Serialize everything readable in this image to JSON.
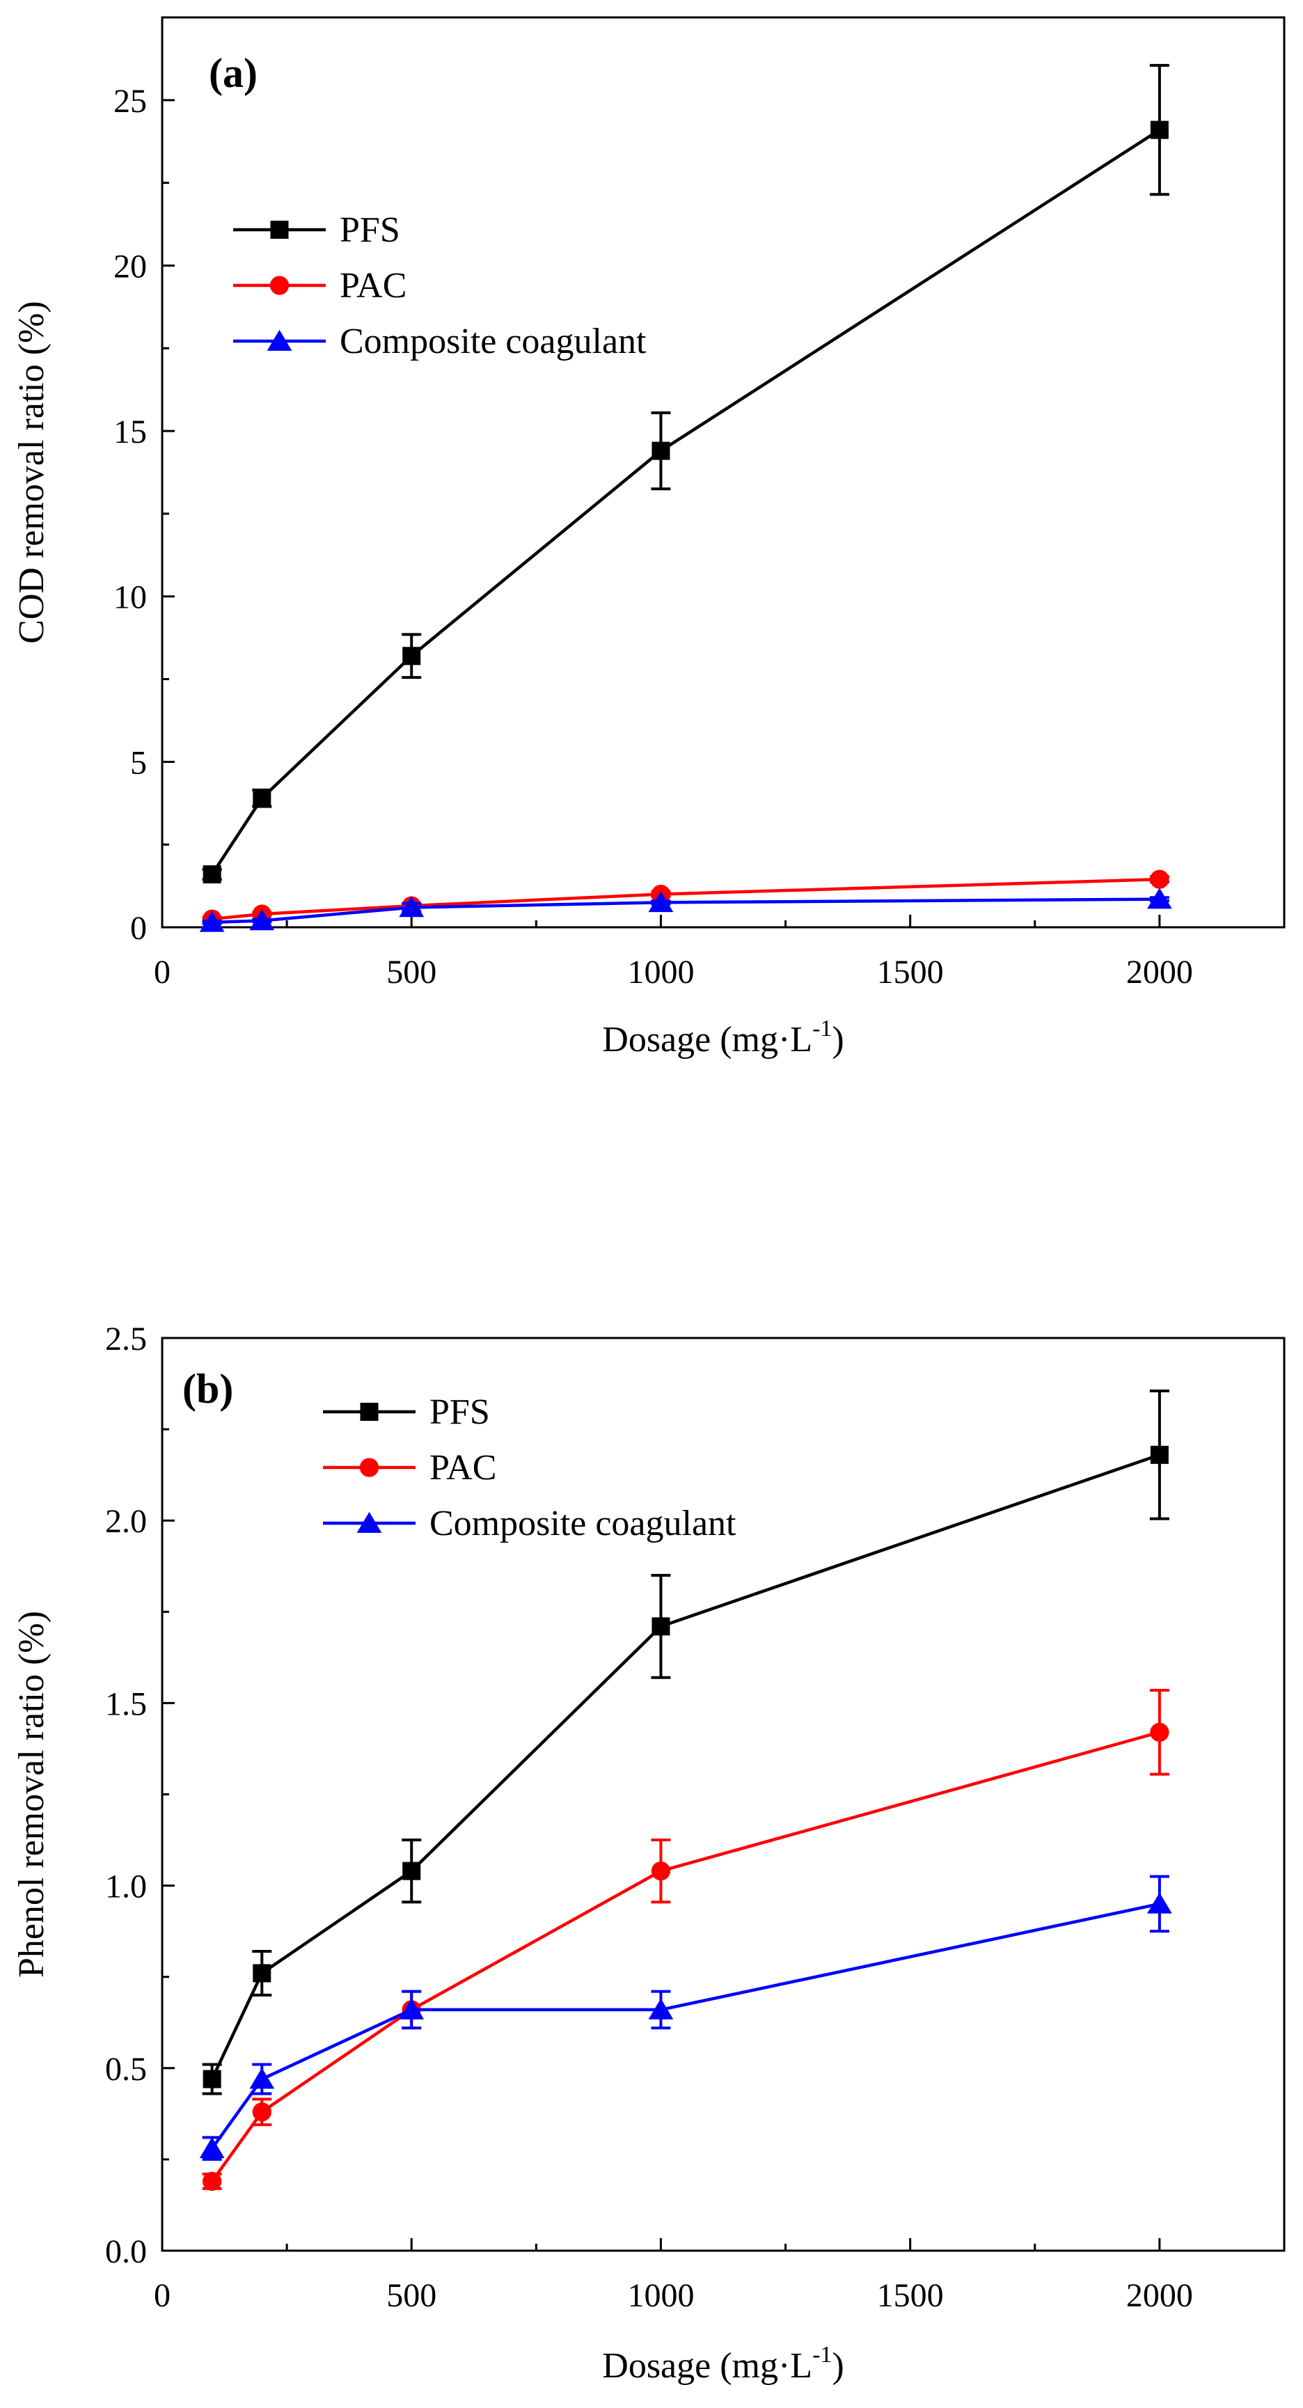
{
  "chart_data": [
    {
      "type": "line",
      "panel_label": "(a)",
      "xlabel": "Dosage (mg·L",
      "xlabel_sup": "-1",
      "xlabel_end": ")",
      "ylabel": "COD removal ratio  (%)",
      "xlim": [
        0,
        2250
      ],
      "ylim": [
        0,
        27.5
      ],
      "x_ticks": [
        0,
        500,
        1000,
        1500,
        2000
      ],
      "y_ticks": [
        0,
        5,
        10,
        15,
        20,
        25
      ],
      "x": [
        100,
        200,
        500,
        1000,
        2000
      ],
      "legend_position": "top-left",
      "series": [
        {
          "name": "PFS",
          "color": "#000000",
          "marker": "square",
          "values": [
            1.6,
            3.9,
            8.2,
            14.4,
            24.1
          ],
          "errors": [
            0.15,
            0.25,
            0.65,
            1.15,
            1.95
          ]
        },
        {
          "name": "PAC",
          "color": "#ff0000",
          "marker": "circle",
          "values": [
            0.25,
            0.4,
            0.65,
            1.0,
            1.45
          ],
          "errors": [
            0.05,
            0.05,
            0.05,
            0.08,
            0.08
          ]
        },
        {
          "name": "Composite coagulant",
          "color": "#0000ff",
          "marker": "triangle",
          "values": [
            0.15,
            0.2,
            0.6,
            0.75,
            0.85
          ],
          "errors": [
            0.04,
            0.04,
            0.12,
            0.05,
            0.05
          ]
        }
      ]
    },
    {
      "type": "line",
      "panel_label": "(b)",
      "xlabel": "Dosage (mg·L",
      "xlabel_sup": "-1",
      "xlabel_end": ")",
      "ylabel": "Phenol removal ratio  (%)",
      "xlim": [
        0,
        2250
      ],
      "ylim": [
        0,
        2.5
      ],
      "x_ticks": [
        0,
        500,
        1000,
        1500,
        2000
      ],
      "y_ticks": [
        0.0,
        0.5,
        1.0,
        1.5,
        2.0,
        2.5
      ],
      "x": [
        100,
        200,
        500,
        1000,
        2000
      ],
      "legend_position": "top-left",
      "series": [
        {
          "name": "PFS",
          "color": "#000000",
          "marker": "square",
          "values": [
            0.47,
            0.76,
            1.04,
            1.71,
            2.18
          ],
          "errors": [
            0.04,
            0.06,
            0.085,
            0.14,
            0.175
          ]
        },
        {
          "name": "PAC",
          "color": "#ff0000",
          "marker": "circle",
          "values": [
            0.19,
            0.38,
            0.66,
            1.04,
            1.42
          ],
          "errors": [
            0.02,
            0.035,
            0.05,
            0.085,
            0.115
          ]
        },
        {
          "name": "Composite coagulant",
          "color": "#0000ff",
          "marker": "triangle",
          "values": [
            0.28,
            0.47,
            0.66,
            0.66,
            0.95
          ],
          "errors": [
            0.03,
            0.04,
            0.05,
            0.05,
            0.075
          ]
        }
      ]
    }
  ]
}
